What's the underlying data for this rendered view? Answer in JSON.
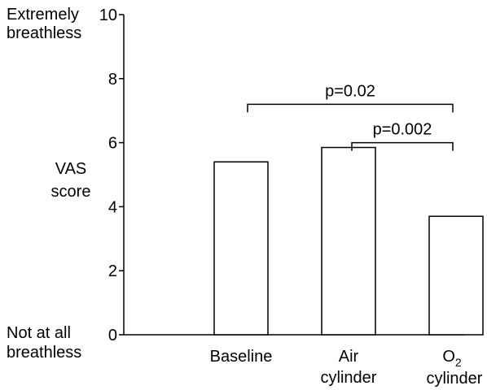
{
  "chart_data": {
    "type": "bar",
    "categories": [
      "Baseline",
      "Air cylinder",
      "O2 cylinder"
    ],
    "category_labels": [
      [
        "Baseline"
      ],
      [
        "Air",
        "cylinder"
      ],
      [
        "O",
        "2",
        "cylinder"
      ]
    ],
    "values": [
      5.4,
      5.85,
      3.7
    ],
    "ylim": [
      0,
      10
    ],
    "yticks": [
      0,
      2,
      4,
      6,
      8,
      10
    ],
    "ylabel": [
      "VAS",
      "score"
    ],
    "top_anchor_label": [
      "Extremely",
      "breathless"
    ],
    "bottom_anchor_label": [
      "Not at all",
      "breathless"
    ],
    "comparisons": [
      {
        "from": "Baseline",
        "to": "O2 cylinder",
        "label": "p=0.02",
        "level": 7.2
      },
      {
        "from": "Air cylinder",
        "to": "O2 cylinder",
        "label": "p=0.002",
        "level": 6.0
      }
    ],
    "grid": false,
    "legend": "none"
  }
}
